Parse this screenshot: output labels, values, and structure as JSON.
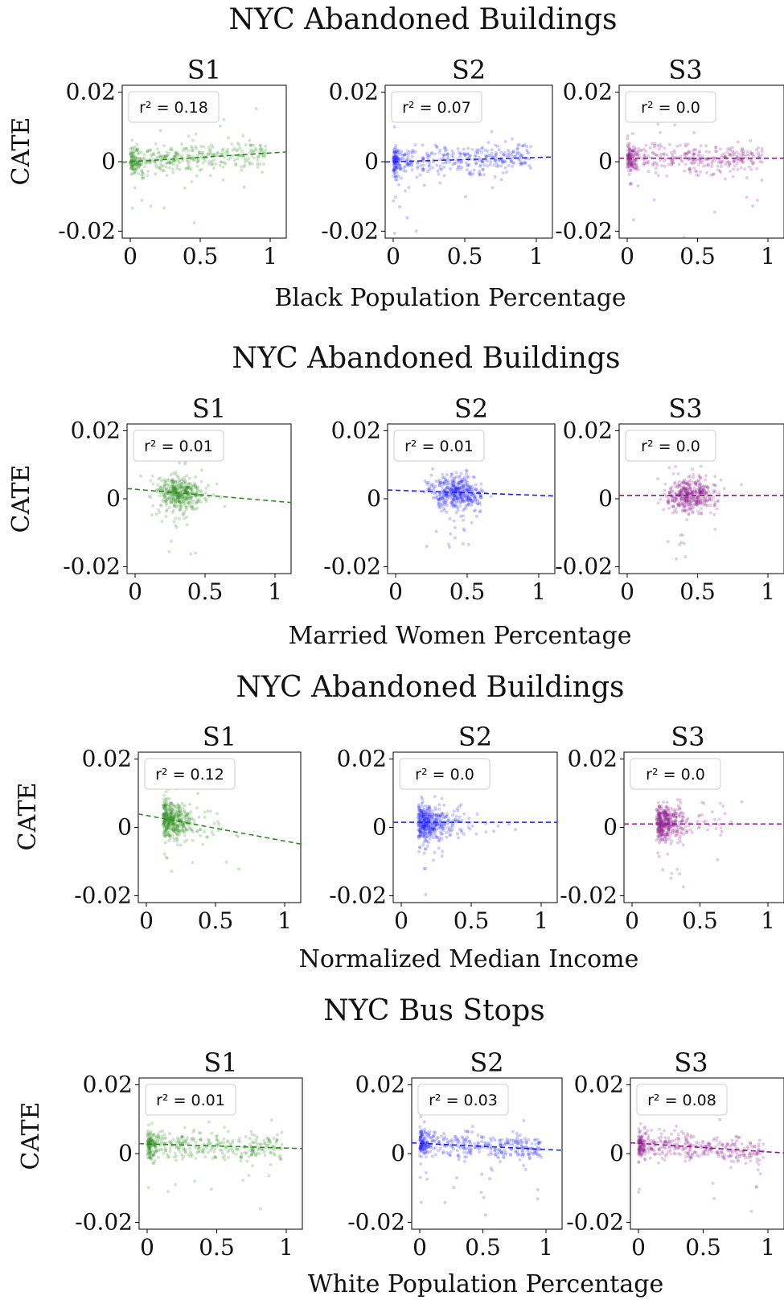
{
  "figure_blocks": [
    {
      "title": "NYC Abandoned Buildings",
      "xlabel": "Black Population Percentage",
      "ylabel": "CATE"
    },
    {
      "title": "NYC Abandoned Buildings",
      "xlabel": "Married Women Percentage",
      "ylabel": "CATE"
    },
    {
      "title": "NYC Abandoned Buildings",
      "xlabel": "Normalized Median Income",
      "ylabel": "CATE"
    },
    {
      "title": "NYC Bus Stops",
      "xlabel": "White Population Percentage",
      "ylabel": "CATE"
    }
  ],
  "colors": {
    "S1": "#2e8b22",
    "S2": "#1f1fff",
    "S3": "#8b1a8b"
  },
  "chart_data": [
    {
      "type": "scatter",
      "row": 0,
      "title": "S1",
      "color": "#2e8b22",
      "r2_label": "r² = 0.18",
      "xlim": [
        0,
        1
      ],
      "ylim": [
        -0.022,
        0.022
      ],
      "xticks": [
        "0",
        "0.5",
        "1"
      ],
      "yticks": [
        "0.02",
        "0",
        "-0.02"
      ],
      "fit_line": {
        "slope": 0.0025,
        "intercept": 0.0
      }
    },
    {
      "type": "scatter",
      "row": 0,
      "title": "S2",
      "color": "#1f1fff",
      "r2_label": "r² = 0.07",
      "xlim": [
        0,
        1
      ],
      "ylim": [
        -0.022,
        0.022
      ],
      "xticks": [
        "0",
        "0.5",
        "1"
      ],
      "yticks": [
        "0.02",
        "0",
        "-0.02"
      ],
      "fit_line": {
        "slope": 0.0012,
        "intercept": 0.0
      }
    },
    {
      "type": "scatter",
      "row": 0,
      "title": "S3",
      "color": "#8b1a8b",
      "r2_label": "r² = 0.0",
      "xlim": [
        0,
        1
      ],
      "ylim": [
        -0.022,
        0.022
      ],
      "xticks": [
        "0",
        "0.5",
        "1"
      ],
      "yticks": [
        "0.02",
        "0",
        "-0.02"
      ],
      "fit_line": {
        "slope": 0.0,
        "intercept": 0.001
      }
    },
    {
      "type": "scatter",
      "row": 1,
      "title": "S1",
      "color": "#2e8b22",
      "r2_label": "r² = 0.01",
      "xlim": [
        0,
        1
      ],
      "ylim": [
        -0.022,
        0.022
      ],
      "xticks": [
        "0",
        "0.5",
        "1"
      ],
      "yticks": [
        "0.02",
        "0",
        "-0.02"
      ],
      "fit_line": {
        "slope": -0.0035,
        "intercept": 0.0028
      }
    },
    {
      "type": "scatter",
      "row": 1,
      "title": "S2",
      "color": "#1f1fff",
      "r2_label": "r² = 0.01",
      "xlim": [
        0,
        1
      ],
      "ylim": [
        -0.022,
        0.022
      ],
      "xticks": [
        "0",
        "0.5",
        "1"
      ],
      "yticks": [
        "0.02",
        "0",
        "-0.02"
      ],
      "fit_line": {
        "slope": -0.0015,
        "intercept": 0.0025
      }
    },
    {
      "type": "scatter",
      "row": 1,
      "title": "S3",
      "color": "#8b1a8b",
      "r2_label": "r² = 0.0",
      "xlim": [
        0,
        1
      ],
      "ylim": [
        -0.022,
        0.022
      ],
      "xticks": [
        "0",
        "0.5",
        "1"
      ],
      "yticks": [
        "0.02",
        "0",
        "-0.02"
      ],
      "fit_line": {
        "slope": 0.0,
        "intercept": 0.001
      }
    },
    {
      "type": "scatter",
      "row": 2,
      "title": "S1",
      "color": "#2e8b22",
      "r2_label": "r² = 0.12",
      "xlim": [
        0,
        1
      ],
      "ylim": [
        -0.022,
        0.022
      ],
      "xticks": [
        "0",
        "0.5",
        "1"
      ],
      "yticks": [
        "0.02",
        "0",
        "-0.02"
      ],
      "fit_line": {
        "slope": -0.0075,
        "intercept": 0.0035
      }
    },
    {
      "type": "scatter",
      "row": 2,
      "title": "S2",
      "color": "#1f1fff",
      "r2_label": "r² = 0.0",
      "xlim": [
        0,
        1
      ],
      "ylim": [
        -0.022,
        0.022
      ],
      "xticks": [
        "0",
        "0.5",
        "1"
      ],
      "yticks": [
        "0.02",
        "0",
        "-0.02"
      ],
      "fit_line": {
        "slope": 0.0,
        "intercept": 0.0015
      }
    },
    {
      "type": "scatter",
      "row": 2,
      "title": "S3",
      "color": "#8b1a8b",
      "r2_label": "r² = 0.0",
      "xlim": [
        0,
        1
      ],
      "ylim": [
        -0.022,
        0.022
      ],
      "xticks": [
        "0",
        "0.5",
        "1"
      ],
      "yticks": [
        "0.02",
        "0",
        "-0.02"
      ],
      "fit_line": {
        "slope": 0.0,
        "intercept": 0.001
      }
    },
    {
      "type": "scatter",
      "row": 3,
      "title": "S1",
      "color": "#2e8b22",
      "r2_label": "r² = 0.01",
      "xlim": [
        0,
        1
      ],
      "ylim": [
        -0.022,
        0.022
      ],
      "xticks": [
        "0",
        "0.5",
        "1"
      ],
      "yticks": [
        "0.02",
        "0",
        "-0.02"
      ],
      "fit_line": {
        "slope": -0.0012,
        "intercept": 0.0028
      }
    },
    {
      "type": "scatter",
      "row": 3,
      "title": "S2",
      "color": "#1f1fff",
      "r2_label": "r² = 0.03",
      "xlim": [
        0,
        1
      ],
      "ylim": [
        -0.022,
        0.022
      ],
      "xticks": [
        "0",
        "0.5",
        "1"
      ],
      "yticks": [
        "0.02",
        "0",
        "-0.02"
      ],
      "fit_line": {
        "slope": -0.0018,
        "intercept": 0.003
      }
    },
    {
      "type": "scatter",
      "row": 3,
      "title": "S3",
      "color": "#8b1a8b",
      "r2_label": "r² = 0.08",
      "xlim": [
        0,
        1
      ],
      "ylim": [
        -0.022,
        0.022
      ],
      "xticks": [
        "0",
        "0.5",
        "1"
      ],
      "yticks": [
        "0.02",
        "0",
        "-0.02"
      ],
      "fit_line": {
        "slope": -0.0025,
        "intercept": 0.003
      }
    }
  ]
}
